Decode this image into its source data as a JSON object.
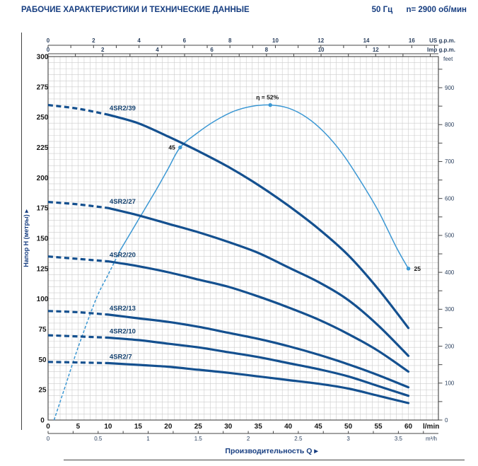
{
  "header": {
    "title": "РАБОЧИЕ ХАРАКТЕРИСТИКИ И ТЕХНИЧЕСКИЕ ДАННЫЕ",
    "frequency": "50 Гц",
    "speed": "n= 2900 об/мин"
  },
  "chart_data": {
    "type": "line",
    "grid": true,
    "xlabel": "Производительность Q  ▸",
    "x_axis_lmin": {
      "unit": "l/min",
      "range": [
        0,
        65
      ],
      "ticks": [
        0,
        5,
        10,
        15,
        20,
        25,
        30,
        35,
        40,
        45,
        50,
        55,
        60
      ],
      "minor_grid_step": 1
    },
    "x_axis_m3h": {
      "unit": "m³/h",
      "ticks": [
        0,
        0.5,
        1,
        1.5,
        2,
        2.5,
        3,
        3.5
      ],
      "minor_tick_step": 0.25,
      "lmin_per_unit": 16.6667
    },
    "x_axis_us_gpm": {
      "unit": "US g.p.m.",
      "ticks": [
        0,
        2,
        4,
        6,
        8,
        10,
        12,
        14,
        16
      ],
      "minor_tick_step": 1,
      "lmin_per_unit": 3.7854
    },
    "x_axis_imp_gpm": {
      "unit": "Imp g.p.m.",
      "ticks": [
        0,
        2,
        4,
        6,
        8,
        10,
        12
      ],
      "minor_tick_step": 1,
      "lmin_per_unit": 4.5461
    },
    "y_axis_m": {
      "label": "Напор H (метры)  ▸",
      "range": [
        0,
        300
      ],
      "ticks": [
        0,
        25,
        50,
        75,
        100,
        125,
        150,
        175,
        200,
        225,
        250,
        275,
        300
      ],
      "minor_grid_step": 5
    },
    "y_axis_feet": {
      "unit": "feet",
      "ticks": [
        0,
        100,
        200,
        300,
        400,
        500,
        600,
        700,
        800,
        900
      ],
      "minor_tick_step": 50,
      "m_per_unit": 0.3048
    },
    "series": [
      {
        "name": "4SR2/39",
        "dash_until": 10,
        "points": [
          [
            0,
            260
          ],
          [
            5,
            257
          ],
          [
            10,
            252
          ],
          [
            15,
            245
          ],
          [
            20,
            234
          ],
          [
            25,
            222
          ],
          [
            30,
            209
          ],
          [
            35,
            194
          ],
          [
            40,
            177
          ],
          [
            45,
            158
          ],
          [
            50,
            136
          ],
          [
            55,
            108
          ],
          [
            60,
            76
          ]
        ]
      },
      {
        "name": "4SR2/27",
        "dash_until": 10,
        "points": [
          [
            0,
            180
          ],
          [
            5,
            178
          ],
          [
            10,
            175
          ],
          [
            15,
            169
          ],
          [
            20,
            162
          ],
          [
            25,
            155
          ],
          [
            30,
            147
          ],
          [
            35,
            138
          ],
          [
            40,
            126
          ],
          [
            45,
            114
          ],
          [
            50,
            99
          ],
          [
            55,
            78
          ],
          [
            60,
            53
          ]
        ]
      },
      {
        "name": "4SR2/20",
        "dash_until": 10,
        "points": [
          [
            0,
            135
          ],
          [
            5,
            133
          ],
          [
            10,
            131
          ],
          [
            15,
            127
          ],
          [
            20,
            122
          ],
          [
            25,
            116
          ],
          [
            30,
            110
          ],
          [
            35,
            102
          ],
          [
            40,
            93
          ],
          [
            45,
            83
          ],
          [
            50,
            71
          ],
          [
            55,
            57
          ],
          [
            60,
            40
          ]
        ]
      },
      {
        "name": "4SR2/13",
        "dash_until": 10,
        "points": [
          [
            0,
            90
          ],
          [
            5,
            89
          ],
          [
            10,
            87
          ],
          [
            15,
            84
          ],
          [
            20,
            81
          ],
          [
            25,
            77
          ],
          [
            30,
            72
          ],
          [
            35,
            67
          ],
          [
            40,
            61
          ],
          [
            45,
            54
          ],
          [
            50,
            46
          ],
          [
            55,
            37
          ],
          [
            60,
            27
          ]
        ]
      },
      {
        "name": "4SR2/10",
        "dash_until": 10,
        "points": [
          [
            0,
            70
          ],
          [
            5,
            69
          ],
          [
            10,
            68
          ],
          [
            15,
            66
          ],
          [
            20,
            63
          ],
          [
            25,
            60
          ],
          [
            30,
            56
          ],
          [
            35,
            52
          ],
          [
            40,
            47
          ],
          [
            45,
            42
          ],
          [
            50,
            36
          ],
          [
            55,
            28
          ],
          [
            60,
            20
          ]
        ]
      },
      {
        "name": "4SR2/7",
        "dash_until": 10,
        "points": [
          [
            0,
            48
          ],
          [
            5,
            47.5
          ],
          [
            10,
            47
          ],
          [
            15,
            45.5
          ],
          [
            20,
            44
          ],
          [
            25,
            41.5
          ],
          [
            30,
            39
          ],
          [
            35,
            36
          ],
          [
            40,
            33
          ],
          [
            45,
            30
          ],
          [
            50,
            26
          ],
          [
            55,
            20
          ],
          [
            60,
            14
          ]
        ]
      }
    ],
    "efficiency_curve": {
      "note": "efficiency percent plotted against left axis, 1% = 5 m",
      "dash_until": 12,
      "points_q_eta": [
        [
          1,
          0
        ],
        [
          3,
          6
        ],
        [
          5,
          12
        ],
        [
          8,
          20
        ],
        [
          10,
          24
        ],
        [
          12,
          28
        ],
        [
          15,
          33
        ],
        [
          18,
          38
        ],
        [
          20,
          41.5
        ],
        [
          22,
          45
        ],
        [
          25,
          47.5
        ],
        [
          28,
          49.5
        ],
        [
          31,
          51
        ],
        [
          34,
          51.8
        ],
        [
          37,
          52
        ],
        [
          40,
          51.5
        ],
        [
          43,
          50
        ],
        [
          46,
          47.5
        ],
        [
          49,
          44
        ],
        [
          52,
          39.5
        ],
        [
          55,
          34.5
        ],
        [
          58,
          28.5
        ],
        [
          60,
          25
        ]
      ],
      "markers": [
        {
          "q": 22,
          "eta": 45,
          "label": "45",
          "label_side": "left"
        },
        {
          "q": 37,
          "eta": 52,
          "label": "η = 52%",
          "label_side": "top"
        },
        {
          "q": 60,
          "eta": 25,
          "label": "25",
          "label_side": "right"
        }
      ]
    },
    "colors": {
      "curve": "#14508f",
      "efficiency": "#3b97d3",
      "grid": "#cccccc",
      "axis": "#444444",
      "navy_text": "#163d80",
      "black_text": "#161616",
      "secondary_text": "#2c415f"
    }
  }
}
